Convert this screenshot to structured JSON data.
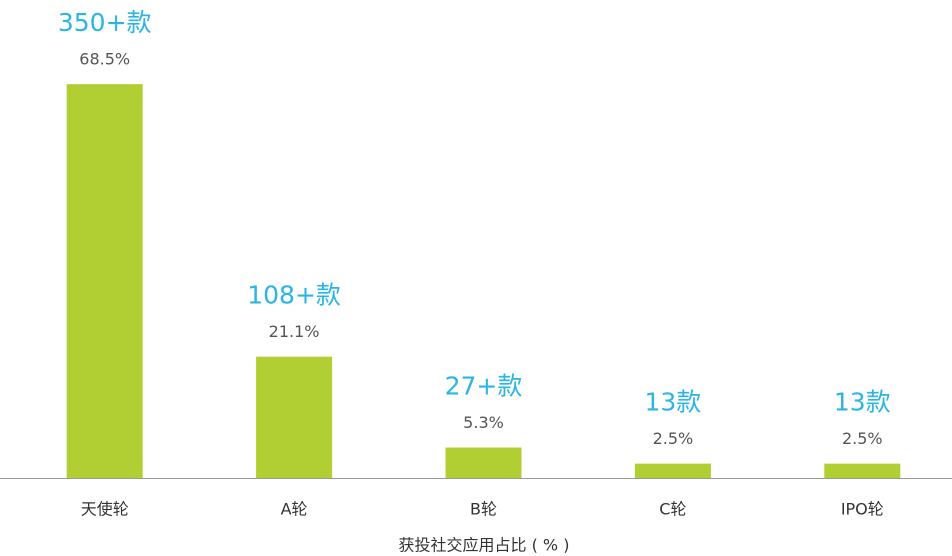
{
  "chart_data": {
    "type": "bar",
    "categories": [
      "天使轮",
      "A轮",
      "B轮",
      "C轮",
      "IPO轮"
    ],
    "values": [
      68.5,
      21.1,
      5.3,
      2.5,
      2.5
    ],
    "value_labels": [
      "68.5%",
      "21.1%",
      "5.3%",
      "2.5%",
      "2.5%"
    ],
    "annotations": [
      "350+款",
      "108+款",
      "27+款",
      "13款",
      "13款"
    ],
    "x_label": "获投社交应用占比 ( % )",
    "color": "#b1cf32",
    "annotation_color": "#2bb5e5",
    "ylim": [
      0,
      80
    ]
  }
}
